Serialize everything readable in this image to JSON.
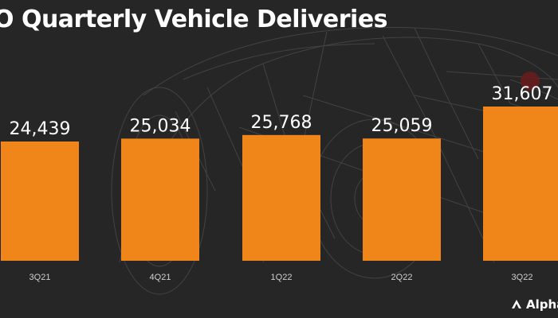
{
  "chart": {
    "title": "O Quarterly Vehicle Deliveries"
  },
  "logo": {
    "text": "Alpha",
    "icon": "alpha-chevron-icon"
  },
  "colors": {
    "bar": "#f0861a",
    "background": "#262626",
    "text": "#ffffff"
  },
  "chart_data": {
    "type": "bar",
    "title": "O Quarterly Vehicle Deliveries",
    "categories": [
      "3Q21",
      "4Q21",
      "1Q22",
      "2Q22",
      "3Q22"
    ],
    "values": [
      24439,
      25034,
      25768,
      25059,
      31607
    ],
    "value_labels": [
      "24,439",
      "25,034",
      "25,768",
      "25,059",
      "31,607"
    ],
    "xlabel": "",
    "ylabel": "",
    "grid": false,
    "legend": "none"
  }
}
